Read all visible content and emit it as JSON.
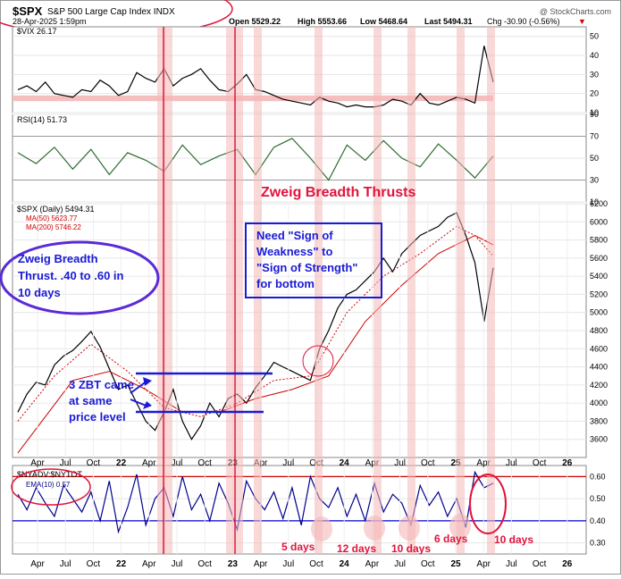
{
  "header": {
    "symbol": "$SPX",
    "description": "S&P 500 Large Cap Index INDX",
    "date": "28-Apr-2025 1:59pm",
    "open": "Open 5529.22",
    "high": "High 5553.66",
    "low": "Low 5468.64",
    "last": "Last 5494.31",
    "chg": "Chg -30.90 (-0.56%)",
    "chg_arrow": "▼",
    "watermark": "@ StockCharts.com"
  },
  "colors": {
    "price_line": "#000000",
    "ma50": "#cc0000",
    "ma200": "#cc0000",
    "breadth_line": "#00008b",
    "highlight_band": "#f4b8b8",
    "annotation_blue": "#1a1ad6",
    "annotation_purple": "#5a2bd6",
    "annotation_red": "#e0143c",
    "rsi_line": "#2f6b2f",
    "vix_band": "#f4b8b8"
  },
  "x_axis": {
    "ticks": [
      "Apr",
      "Jul",
      "Oct",
      "22",
      "Apr",
      "Jul",
      "Oct",
      "23",
      "Apr",
      "Jul",
      "Oct",
      "24",
      "Apr",
      "Jul",
      "Oct",
      "25",
      "Apr",
      "Jul",
      "Oct",
      "26"
    ],
    "bold_years": [
      "22",
      "23",
      "24",
      "25",
      "26"
    ]
  },
  "chart_data": [
    {
      "type": "line",
      "panel": "vix",
      "label": "$VIX 26.17",
      "ylim": [
        10,
        55
      ],
      "yticks": [
        10,
        20,
        30,
        40,
        50
      ],
      "band": [
        16,
        19
      ],
      "series": [
        {
          "name": "$VIX",
          "x": [
            0,
            1,
            2,
            3,
            4,
            5,
            6,
            7,
            8,
            9,
            10,
            11,
            12,
            13,
            14,
            15,
            16,
            17,
            18,
            19,
            20,
            21,
            22,
            23,
            24,
            25,
            26,
            27,
            28,
            29,
            30,
            31,
            32,
            33,
            34,
            35,
            36,
            37,
            38,
            39,
            40,
            41,
            42,
            43,
            44,
            45,
            46,
            47,
            48,
            49,
            50,
            51,
            52
          ],
          "values": [
            22,
            24,
            21,
            26,
            20,
            19,
            18,
            22,
            21,
            27,
            24,
            19,
            21,
            31,
            28,
            26,
            33,
            24,
            28,
            30,
            33,
            27,
            22,
            21,
            25,
            30,
            22,
            21,
            19,
            17,
            16,
            15,
            14,
            18,
            16,
            15,
            13,
            14,
            13,
            13,
            14,
            17,
            16,
            14,
            20,
            15,
            14,
            16,
            18,
            17,
            15,
            45,
            26
          ]
        }
      ]
    },
    {
      "type": "line",
      "panel": "rsi",
      "label": "RSI(14) 51.73",
      "ylim": [
        10,
        90
      ],
      "yticks": [
        10,
        30,
        50,
        70,
        90
      ],
      "reference_lines": [
        30,
        70
      ],
      "series": [
        {
          "name": "RSI(14)",
          "x": [
            0,
            2,
            4,
            6,
            8,
            10,
            12,
            14,
            16,
            18,
            20,
            22,
            24,
            26,
            28,
            30,
            32,
            34,
            36,
            38,
            40,
            42,
            44,
            46,
            48,
            50,
            52
          ],
          "values": [
            55,
            45,
            60,
            40,
            58,
            35,
            55,
            48,
            38,
            62,
            44,
            52,
            58,
            35,
            60,
            68,
            50,
            30,
            62,
            48,
            66,
            50,
            42,
            63,
            48,
            32,
            52
          ]
        }
      ]
    },
    {
      "type": "line",
      "panel": "price",
      "label": "$SPX (Daily) 5494.31",
      "ylim": [
        3400,
        6200
      ],
      "yticks": [
        3600,
        3800,
        4000,
        4200,
        4400,
        4600,
        4800,
        5000,
        5200,
        5400,
        5600,
        5800,
        6000,
        6200
      ],
      "series": [
        {
          "name": "$SPX (Daily) 5494.31",
          "x": [
            0,
            1,
            2,
            3,
            4,
            5,
            6,
            7,
            8,
            9,
            10,
            11,
            12,
            13,
            14,
            15,
            16,
            17,
            18,
            19,
            20,
            21,
            22,
            23,
            24,
            25,
            26,
            27,
            28,
            29,
            30,
            31,
            32,
            33,
            34,
            35,
            36,
            37,
            38,
            39,
            40,
            41,
            42,
            43,
            44,
            45,
            46,
            47,
            48,
            49,
            50,
            51,
            52
          ],
          "values": [
            3900,
            4100,
            4230,
            4200,
            4420,
            4520,
            4580,
            4680,
            4790,
            4620,
            4380,
            4150,
            4200,
            4000,
            3800,
            3700,
            3900,
            4150,
            3800,
            3600,
            3750,
            4000,
            3850,
            4050,
            4100,
            4000,
            4170,
            4300,
            4450,
            4400,
            4350,
            4300,
            4250,
            4600,
            4800,
            5050,
            5200,
            5250,
            5350,
            5450,
            5600,
            5450,
            5650,
            5750,
            5850,
            5900,
            5950,
            6050,
            6100,
            5850,
            5550,
            4900,
            5494
          ]
        },
        {
          "name": "MA(50) 5623.77",
          "x": [
            0,
            4,
            8,
            12,
            16,
            20,
            24,
            28,
            32,
            36,
            40,
            44,
            48,
            50,
            52
          ],
          "values": [
            3800,
            4300,
            4650,
            4350,
            3950,
            3850,
            4000,
            4250,
            4300,
            5000,
            5400,
            5650,
            5950,
            5850,
            5624
          ]
        },
        {
          "name": "MA(200) 5746.22",
          "x": [
            0,
            6,
            10,
            14,
            18,
            22,
            26,
            30,
            34,
            38,
            42,
            46,
            50,
            52
          ],
          "values": [
            3450,
            4250,
            4350,
            4150,
            3900,
            3900,
            4050,
            4150,
            4300,
            4900,
            5300,
            5650,
            5850,
            5746
          ]
        }
      ]
    },
    {
      "type": "line",
      "panel": "breadth",
      "label": "$NYADV:$NYTOT",
      "series_label": "EMA(10) 0.57",
      "ylim": [
        0.25,
        0.65
      ],
      "yticks": [
        0.3,
        0.4,
        0.5,
        0.6
      ],
      "reference_lines": [
        0.4,
        0.6
      ],
      "series": [
        {
          "name": "EMA(10) 0.57",
          "x": [
            0,
            1,
            2,
            3,
            4,
            5,
            6,
            7,
            8,
            9,
            10,
            11,
            12,
            13,
            14,
            15,
            16,
            17,
            18,
            19,
            20,
            21,
            22,
            23,
            24,
            25,
            26,
            27,
            28,
            29,
            30,
            31,
            32,
            33,
            34,
            35,
            36,
            37,
            38,
            39,
            40,
            41,
            42,
            43,
            44,
            45,
            46,
            47,
            48,
            49,
            50,
            51,
            52
          ],
          "values": [
            0.52,
            0.45,
            0.55,
            0.48,
            0.42,
            0.56,
            0.5,
            0.44,
            0.53,
            0.4,
            0.58,
            0.35,
            0.46,
            0.61,
            0.38,
            0.5,
            0.55,
            0.42,
            0.6,
            0.45,
            0.52,
            0.4,
            0.57,
            0.48,
            0.36,
            0.58,
            0.5,
            0.45,
            0.53,
            0.41,
            0.55,
            0.38,
            0.6,
            0.5,
            0.46,
            0.55,
            0.42,
            0.52,
            0.4,
            0.57,
            0.44,
            0.52,
            0.48,
            0.38,
            0.56,
            0.47,
            0.53,
            0.42,
            0.5,
            0.37,
            0.62,
            0.55,
            0.57
          ]
        }
      ]
    }
  ],
  "annotations": {
    "zweig_title": "Zweig Breadth Thrusts",
    "zweig_def": [
      "Zweig Breadth",
      "Thrust. .40 to .60 in",
      "10 days"
    ],
    "need_sign": [
      "Need \"Sign of",
      "Weakness\" to",
      "\"Sign of Strength\"",
      "for bottom"
    ],
    "zbt_note": [
      "3 ZBT came",
      "at same",
      "price level"
    ],
    "day_labels": [
      "5 days",
      "12 days",
      "10 days",
      "6 days",
      "10 days"
    ]
  }
}
